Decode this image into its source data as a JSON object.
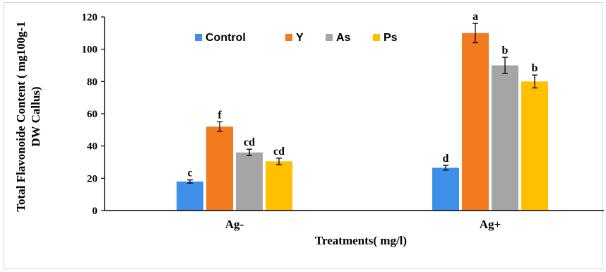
{
  "chart_data": {
    "type": "bar",
    "categories": [
      "Ag-",
      "Ag+"
    ],
    "series": [
      {
        "name": "Control",
        "color": "#3d8fe8",
        "values": [
          18,
          26.5
        ],
        "errors": [
          1,
          1.5
        ],
        "labels": [
          "c",
          "d"
        ]
      },
      {
        "name": "Y",
        "color": "#f47a1f",
        "values": [
          52,
          110
        ],
        "errors": [
          3,
          6
        ],
        "labels": [
          "f",
          "a"
        ]
      },
      {
        "name": "As",
        "color": "#a5a5a5",
        "values": [
          36,
          90
        ],
        "errors": [
          2,
          5
        ],
        "labels": [
          "cd",
          "b"
        ]
      },
      {
        "name": "Ps",
        "color": "#ffc000",
        "values": [
          30.5,
          80
        ],
        "errors": [
          2,
          4
        ],
        "labels": [
          "cd",
          "b"
        ]
      }
    ],
    "xlabel": "Treatments( mg/l)",
    "ylabel_lines": [
      "Total Flavonoide Content ( mg100g-1",
      "DW Callus)"
    ],
    "ylim": [
      0,
      120
    ],
    "yticks": [
      0,
      20,
      40,
      60,
      80,
      100,
      120
    ],
    "grid": false,
    "legend_position": "top-left"
  }
}
